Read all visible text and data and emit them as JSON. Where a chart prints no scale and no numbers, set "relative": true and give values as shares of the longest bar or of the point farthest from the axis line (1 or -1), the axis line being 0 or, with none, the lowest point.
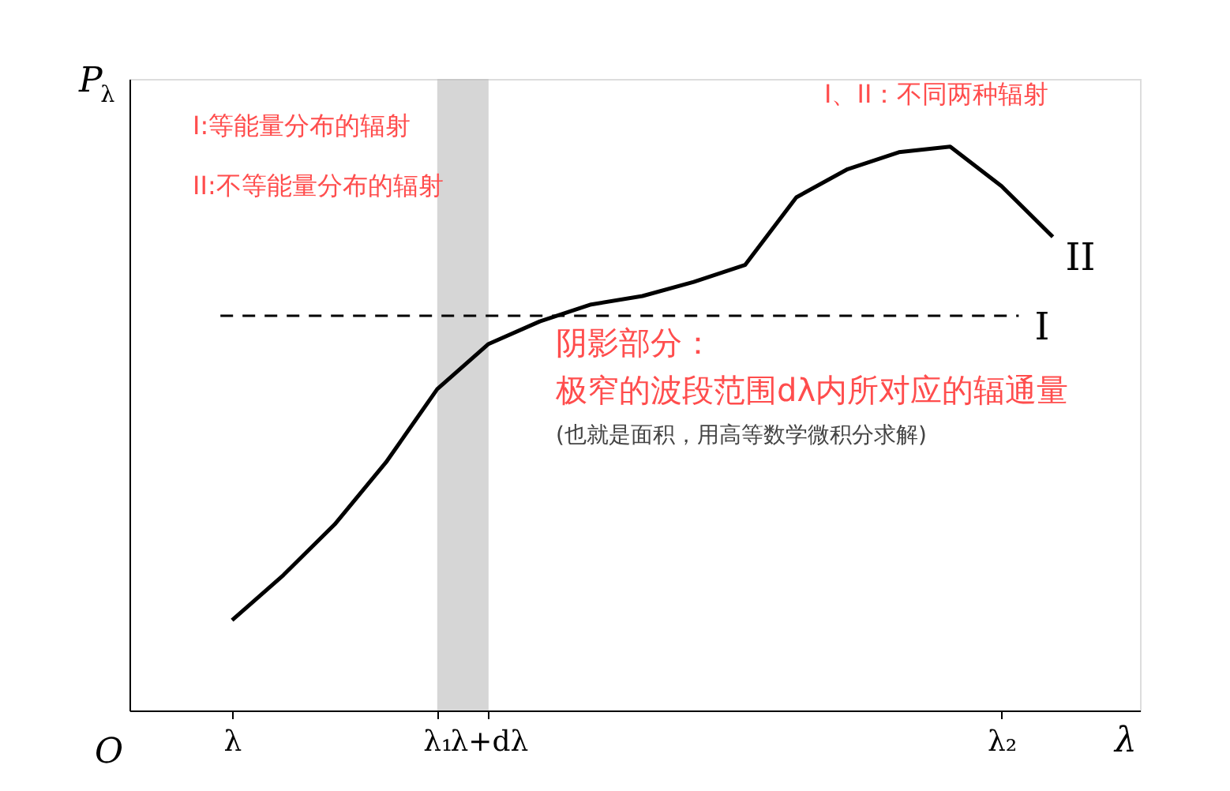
{
  "chart_data": {
    "type": "line",
    "relative": true,
    "ylabel": "P$_{λ}$",
    "xlabel": "λ",
    "categories": [
      "λ",
      null,
      null,
      null,
      "λ₁",
      "λ+dλ",
      null,
      null,
      null,
      null,
      null,
      null,
      null,
      null,
      null,
      "λ₂",
      null
    ],
    "series": [
      {
        "name": "II",
        "color": "#000000",
        "values": [
          0.16,
          0.24,
          0.33,
          0.44,
          0.57,
          0.65,
          0.69,
          0.72,
          0.735,
          0.76,
          0.79,
          0.91,
          0.96,
          0.99,
          1,
          0.93,
          0.84
        ]
      }
    ],
    "ref_lines": [
      {
        "axis": "y",
        "value": 0.7,
        "label": "I",
        "color": "#000000",
        "line_style": "dashed"
      }
    ],
    "bands": [
      {
        "axis": "x",
        "from": "λ₁",
        "to": "λ+dλ",
        "label": null,
        "color": "#bbbbbb"
      }
    ],
    "annotations": [
      "I:等能量分布的辐射",
      "II:不等能量分布的辐射",
      "I、II：不同两种辐射",
      "阴影部分：",
      "极窄的波段范围dλ内所对应的辐通量",
      "(也就是面积，用高等数学微积分求解)",
      "O"
    ],
    "grid": false,
    "marker": "none",
    "line_style": "solid"
  }
}
